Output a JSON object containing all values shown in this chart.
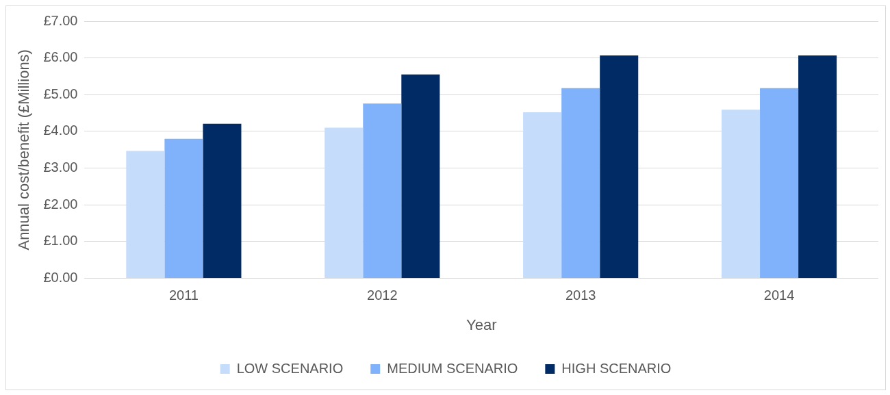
{
  "chart_data": {
    "type": "bar",
    "xlabel": "Year",
    "ylabel": "Annual cost/benefit (£Millions)",
    "categories": [
      "2011",
      "2012",
      "2013",
      "2014"
    ],
    "series": [
      {
        "name": "LOW SCENARIO",
        "color": "#c5dcfb",
        "values": [
          3.47,
          4.1,
          4.52,
          4.59
        ]
      },
      {
        "name": "MEDIUM SCENARIO",
        "color": "#7fb2fb",
        "values": [
          3.8,
          4.76,
          5.18,
          5.18
        ]
      },
      {
        "name": "HIGH SCENARIO",
        "color": "#002b64",
        "values": [
          4.21,
          5.55,
          6.07,
          6.07
        ]
      }
    ],
    "ylim": [
      0,
      7
    ],
    "yticks": [
      {
        "value": 0,
        "label": "£0.00"
      },
      {
        "value": 1,
        "label": "£1.00"
      },
      {
        "value": 2,
        "label": "£2.00"
      },
      {
        "value": 3,
        "label": "£3.00"
      },
      {
        "value": 4,
        "label": "£4.00"
      },
      {
        "value": 5,
        "label": "£5.00"
      },
      {
        "value": 6,
        "label": "£6.00"
      },
      {
        "value": 7,
        "label": "£7.00"
      }
    ],
    "grid": "y",
    "legend": "bottom"
  }
}
